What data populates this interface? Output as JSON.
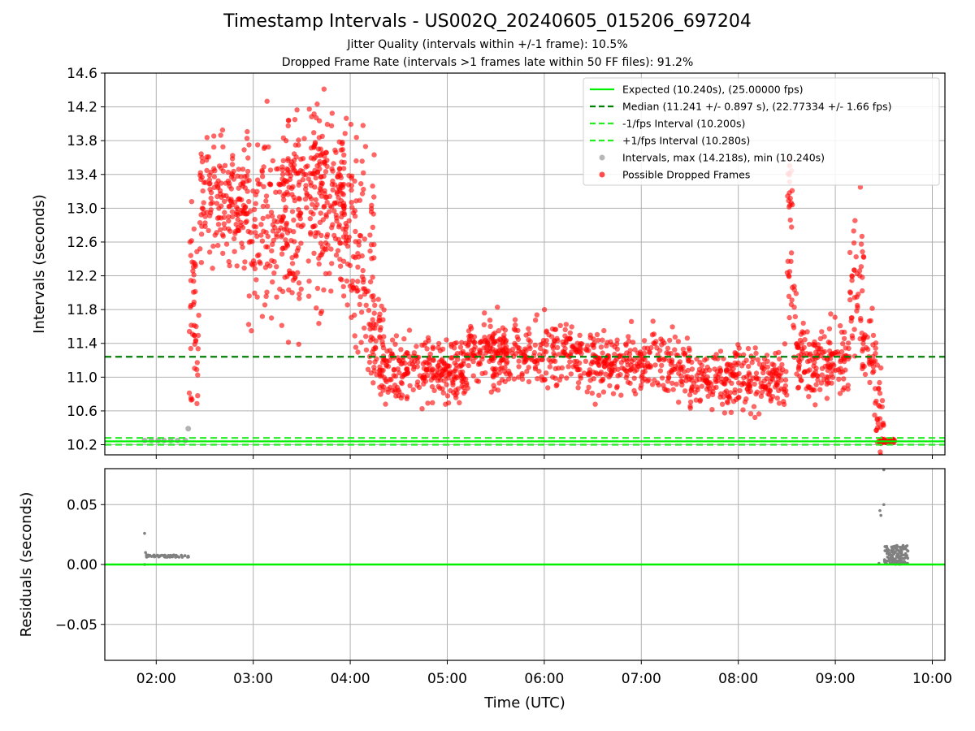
{
  "title": "Timestamp Intervals - US002Q_20240605_015206_697204",
  "subtitle_1": "Jitter Quality (intervals within +/-1 frame): 10.5%",
  "subtitle_2": "Dropped Frame Rate (intervals >1 frames late within 50 FF files): 91.2%",
  "colors": {
    "expected": "#00ee00",
    "median": "#008000",
    "fps_bounds": "#22ee22",
    "intervals": "#999999",
    "dropped": "#ff0000",
    "residuals": "#808080"
  },
  "chart_data": [
    {
      "type": "scatter",
      "panel": "top",
      "xlabel": "",
      "ylabel": "Intervals (seconds)",
      "x_unit": "hours UTC",
      "xlim": [
        1.47,
        10.13
      ],
      "ylim": [
        10.08,
        14.6
      ],
      "grid": true,
      "yticks": [
        10.2,
        10.6,
        11.0,
        11.4,
        11.8,
        12.2,
        12.6,
        13.0,
        13.4,
        13.8,
        14.2,
        14.6
      ],
      "ytick_labels": [
        "10.2",
        "10.6",
        "11.0",
        "11.4",
        "11.8",
        "12.2",
        "12.6",
        "13.0",
        "13.4",
        "13.8",
        "14.2",
        "14.6"
      ],
      "legend_position": "upper right",
      "reference_lines": [
        {
          "name": "Expected (10.240s), (25.00000 fps)",
          "y": 10.24,
          "style": "solid",
          "color": "#00ee00"
        },
        {
          "name": "Median (11.241 +/- 0.897 s), (22.77334 +/- 1.66 fps)",
          "y": 11.241,
          "style": "dashed",
          "color": "#008000"
        },
        {
          "name": "-1/fps Interval (10.200s)",
          "y": 10.2,
          "style": "dashed",
          "color": "#22ee22"
        },
        {
          "name": "+1/fps Interval (10.280s)",
          "y": 10.28,
          "style": "dashed",
          "color": "#22ee22"
        }
      ],
      "series": [
        {
          "name": "Intervals, max (14.218s), min (10.240s)",
          "color": "#999999",
          "points": [
            [
              1.88,
              10.25
            ],
            [
              1.95,
              10.25
            ],
            [
              2.02,
              10.25
            ],
            [
              2.08,
              10.25
            ],
            [
              2.15,
              10.25
            ],
            [
              2.22,
              10.25
            ],
            [
              2.3,
              10.25
            ],
            [
              2.33,
              10.39
            ]
          ]
        },
        {
          "name": "Possible Dropped Frames",
          "color": "#ff0000",
          "segments": [
            {
              "x_range": [
                2.33,
                2.44
              ],
              "y_center": 11.7,
              "y_spread": 0.6,
              "count": 45
            },
            {
              "x_range": [
                2.45,
                2.95
              ],
              "y_center": 13.1,
              "y_spread": 0.35,
              "count": 180
            },
            {
              "x_range": [
                2.95,
                3.5
              ],
              "y_center": 12.8,
              "y_spread": 0.55,
              "count": 180
            },
            {
              "x_range": [
                3.3,
                3.95
              ],
              "y_center": 13.3,
              "y_spread": 0.35,
              "count": 160
            },
            {
              "x_range": [
                3.55,
                4.0
              ],
              "y_center": 12.9,
              "y_spread": 0.6,
              "count": 120
            },
            {
              "x_range": [
                4.0,
                4.25
              ],
              "y_center": 12.5,
              "y_spread": 0.6,
              "count": 90
            },
            {
              "x_range": [
                4.2,
                4.35
              ],
              "y_center": 11.4,
              "y_spread": 0.25,
              "count": 40
            },
            {
              "x_range": [
                4.3,
                5.2
              ],
              "y_center": 11.1,
              "y_spread": 0.2,
              "count": 260
            },
            {
              "x_range": [
                5.2,
                6.3
              ],
              "y_center": 11.3,
              "y_spread": 0.18,
              "count": 300
            },
            {
              "x_range": [
                6.3,
                7.5
              ],
              "y_center": 11.15,
              "y_spread": 0.18,
              "count": 300
            },
            {
              "x_range": [
                7.5,
                8.5
              ],
              "y_center": 10.98,
              "y_spread": 0.18,
              "count": 260
            },
            {
              "x_range": [
                8.5,
                8.56
              ],
              "y_center": 13.2,
              "y_spread": 0.22,
              "count": 18
            },
            {
              "x_range": [
                8.5,
                8.6
              ],
              "y_center": 11.9,
              "y_spread": 0.35,
              "count": 20
            },
            {
              "x_range": [
                8.6,
                9.15
              ],
              "y_center": 11.2,
              "y_spread": 0.2,
              "count": 160
            },
            {
              "x_range": [
                9.15,
                9.3
              ],
              "y_center": 12.1,
              "y_spread": 0.4,
              "count": 40
            },
            {
              "x_range": [
                9.25,
                9.42
              ],
              "y_center": 11.3,
              "y_spread": 0.25,
              "count": 40
            },
            {
              "x_range": [
                9.4,
                9.5
              ],
              "y_center": 10.6,
              "y_spread": 0.25,
              "count": 30
            },
            {
              "x_range": [
                9.45,
                9.62
              ],
              "y_center": 10.245,
              "y_spread": 0.015,
              "count": 45
            }
          ]
        }
      ]
    },
    {
      "type": "scatter",
      "panel": "bottom",
      "xlabel": "Time (UTC)",
      "ylabel": "Residuals (seconds)",
      "x_unit": "hours UTC",
      "xlim": [
        1.47,
        10.13
      ],
      "ylim": [
        -0.08,
        0.08
      ],
      "grid": true,
      "xticks": [
        2,
        3,
        4,
        5,
        6,
        7,
        8,
        9,
        10
      ],
      "xtick_labels": [
        "02:00",
        "03:00",
        "04:00",
        "05:00",
        "06:00",
        "07:00",
        "08:00",
        "09:00",
        "10:00"
      ],
      "yticks": [
        -0.05,
        0.0,
        0.05
      ],
      "ytick_labels": [
        "−0.05",
        "0.00",
        "0.05"
      ],
      "reference_lines": [
        {
          "y": 0.0,
          "style": "solid",
          "color": "#00ee00"
        }
      ],
      "series": [
        {
          "name": "",
          "color": "#808080",
          "points": [
            [
              1.88,
              0.026
            ],
            [
              1.88,
              0.0
            ],
            [
              1.89,
              0.01
            ],
            [
              1.9,
              0.008
            ]
          ],
          "segments": [
            {
              "x_range": [
                1.9,
                2.34
              ],
              "y_center": 0.007,
              "y_spread": 0.001,
              "count": 60
            },
            {
              "x_range": [
                9.5,
                9.75
              ],
              "y_center": 0.008,
              "y_spread": 0.008,
              "count": 140
            }
          ],
          "outliers": [
            [
              9.46,
              0.045
            ],
            [
              9.47,
              0.041
            ],
            [
              9.5,
              0.05
            ],
            [
              9.5,
              0.079
            ],
            [
              9.45,
              0.001
            ]
          ]
        }
      ]
    }
  ]
}
